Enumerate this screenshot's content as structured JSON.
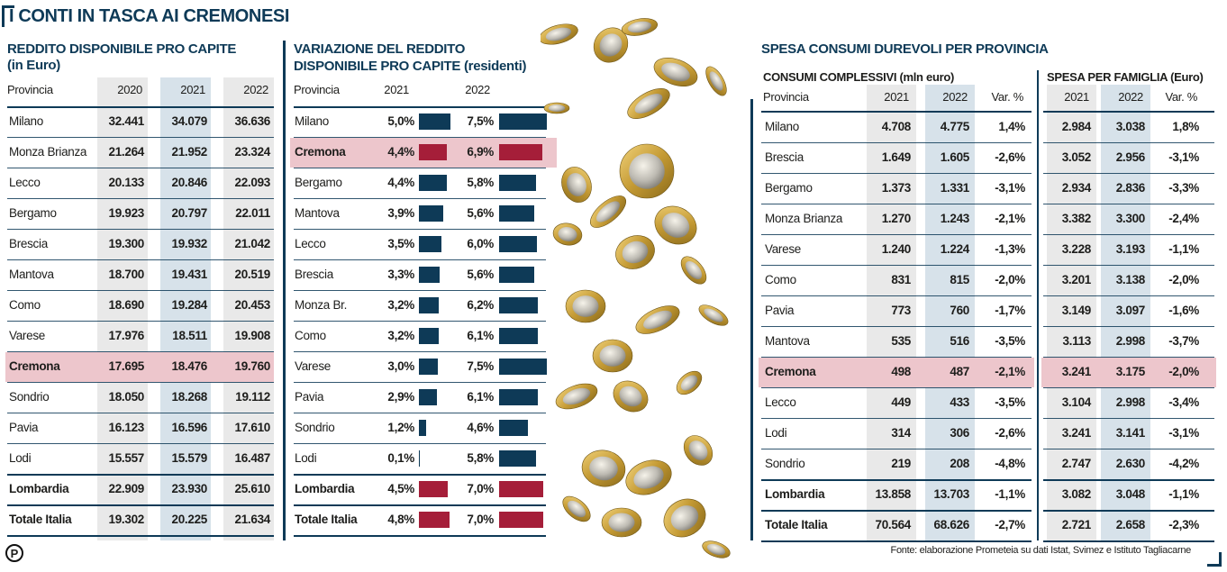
{
  "title": "I CONTI IN TASCA AI CREMONESI",
  "reddito": {
    "title1": "REDDITO DISPONIBILE PRO CAPITE",
    "title2": "(in Euro)",
    "headers": [
      "Provincia",
      "2020",
      "2021",
      "2022"
    ],
    "rows": [
      [
        "Milano",
        "32.441",
        "34.079",
        "36.636"
      ],
      [
        "Monza Brianza",
        "21.264",
        "21.952",
        "23.324"
      ],
      [
        "Lecco",
        "20.133",
        "20.846",
        "22.093"
      ],
      [
        "Bergamo",
        "19.923",
        "20.797",
        "22.011"
      ],
      [
        "Brescia",
        "19.300",
        "19.932",
        "21.042"
      ],
      [
        "Mantova",
        "18.700",
        "19.431",
        "20.519"
      ],
      [
        "Como",
        "18.690",
        "19.284",
        "20.453"
      ],
      [
        "Varese",
        "17.976",
        "18.511",
        "19.908"
      ],
      [
        "Cremona",
        "17.695",
        "18.476",
        "19.760"
      ],
      [
        "Sondrio",
        "18.050",
        "18.268",
        "19.112"
      ],
      [
        "Pavia",
        "16.123",
        "16.596",
        "17.610"
      ],
      [
        "Lodi",
        "15.557",
        "15.579",
        "16.487"
      ],
      [
        "Lombardia",
        "22.909",
        "23.930",
        "25.610"
      ],
      [
        "Totale Italia",
        "19.302",
        "20.225",
        "21.634"
      ]
    ]
  },
  "variazione": {
    "title1": "VARIAZIONE DEL REDDITO",
    "title2": "DISPONIBILE PRO CAPITE (residenti)",
    "headers": [
      "Provincia",
      "2021",
      "2022"
    ],
    "colors": {
      "bar": "#0e3a57",
      "highlight": "#a51e39"
    },
    "rows": [
      [
        "Milano",
        "5,0%",
        5.0,
        "7,5%",
        7.5
      ],
      [
        "Cremona",
        "4,4%",
        4.4,
        "6,9%",
        6.9
      ],
      [
        "Bergamo",
        "4,4%",
        4.4,
        "5,8%",
        5.8
      ],
      [
        "Mantova",
        "3,9%",
        3.9,
        "5,6%",
        5.6
      ],
      [
        "Lecco",
        "3,5%",
        3.5,
        "6,0%",
        6.0
      ],
      [
        "Brescia",
        "3,3%",
        3.3,
        "5,6%",
        5.6
      ],
      [
        "Monza Br.",
        "3,2%",
        3.2,
        "6,2%",
        6.2
      ],
      [
        "Como",
        "3,2%",
        3.2,
        "6,1%",
        6.1
      ],
      [
        "Varese",
        "3,0%",
        3.0,
        "7,5%",
        7.5
      ],
      [
        "Pavia",
        "2,9%",
        2.9,
        "6,1%",
        6.1
      ],
      [
        "Sondrio",
        "1,2%",
        1.2,
        "4,6%",
        4.6
      ],
      [
        "Lodi",
        "0,1%",
        0.1,
        "5,8%",
        5.8
      ],
      [
        "Lombardia",
        "4,5%",
        4.5,
        "7,0%",
        7.0
      ],
      [
        "Totale Italia",
        "4,8%",
        4.8,
        "7,0%",
        7.0
      ]
    ]
  },
  "spesa": {
    "title": "SPESA CONSUMI DUREVOLI PER PROVINCIA",
    "sub1": "CONSUMI COMPLESSIVI (mln euro)",
    "sub2": "SPESA PER FAMIGLIA (Euro)",
    "headers": [
      "Provincia",
      "2021",
      "2022",
      "Var. %",
      "2021",
      "2022",
      "Var. %"
    ],
    "rows": [
      [
        "Milano",
        "4.708",
        "4.775",
        "1,4%",
        "2.984",
        "3.038",
        "1,8%"
      ],
      [
        "Brescia",
        "1.649",
        "1.605",
        "-2,6%",
        "3.052",
        "2.956",
        "-3,1%"
      ],
      [
        "Bergamo",
        "1.373",
        "1.331",
        "-3,1%",
        "2.934",
        "2.836",
        "-3,3%"
      ],
      [
        "Monza Brianza",
        "1.270",
        "1.243",
        "-2,1%",
        "3.382",
        "3.300",
        "-2,4%"
      ],
      [
        "Varese",
        "1.240",
        "1.224",
        "-1,3%",
        "3.228",
        "3.193",
        "-1,1%"
      ],
      [
        "Como",
        "831",
        "815",
        "-2,0%",
        "3.201",
        "3.138",
        "-2,0%"
      ],
      [
        "Pavia",
        "773",
        "760",
        "-1,7%",
        "3.149",
        "3.097",
        "-1,6%"
      ],
      [
        "Mantova",
        "535",
        "516",
        "-3,5%",
        "3.113",
        "2.998",
        "-3,7%"
      ],
      [
        "Cremona",
        "498",
        "487",
        "-2,1%",
        "3.241",
        "3.175",
        "-2,0%"
      ],
      [
        "Lecco",
        "449",
        "433",
        "-3,5%",
        "3.104",
        "2.998",
        "-3,4%"
      ],
      [
        "Lodi",
        "314",
        "306",
        "-2,6%",
        "3.241",
        "3.141",
        "-3,1%"
      ],
      [
        "Sondrio",
        "219",
        "208",
        "-4,8%",
        "2.747",
        "2.630",
        "-4,2%"
      ],
      [
        "Lombardia",
        "13.858",
        "13.703",
        "-1,1%",
        "3.082",
        "3.048",
        "-1,1%"
      ],
      [
        "Totale Italia",
        "70.564",
        "68.626",
        "-2,7%",
        "2.721",
        "2.658",
        "-2,3%"
      ]
    ]
  },
  "source": "Fonte: elaborazione Prometeia su dati Istat, Svimez e Istituto Tagliacarne",
  "logo": "P"
}
